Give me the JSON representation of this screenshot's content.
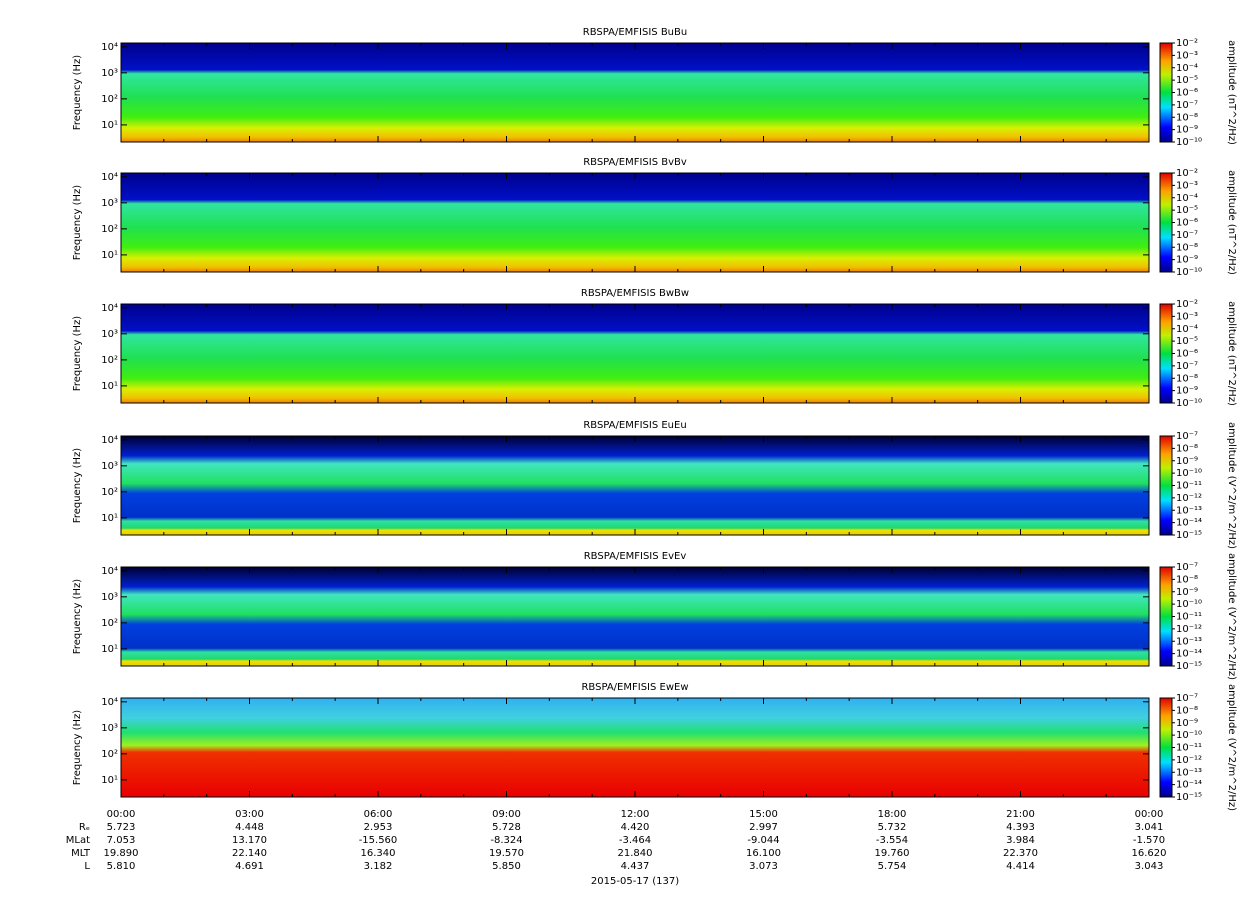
{
  "chart_data": [
    {
      "type": "spectrogram",
      "title": "RBSPA/EMFISIS  BuBu",
      "ylabel": "Frequency (Hz)",
      "ylog": true,
      "ylim": [
        2.2,
        14000
      ],
      "yticks": [
        {
          "value": 10,
          "label": "10¹"
        },
        {
          "value": 100,
          "label": "10²"
        },
        {
          "value": 1000,
          "label": "10³"
        },
        {
          "value": 10000,
          "label": "10⁴"
        }
      ],
      "zlabel": "amplitude (nT^2/Hz)",
      "zlog": true,
      "zlim": [
        1e-10,
        0.01
      ],
      "zticks": [
        {
          "value": 0.01,
          "label": "10⁻²"
        },
        {
          "value": 0.001,
          "label": "10⁻³"
        },
        {
          "value": 0.0001,
          "label": "10⁻⁴"
        },
        {
          "value": 1e-05,
          "label": "10⁻⁵"
        },
        {
          "value": 1e-06,
          "label": "10⁻⁶"
        },
        {
          "value": 1e-07,
          "label": "10⁻⁷"
        },
        {
          "value": 1e-08,
          "label": "10⁻⁸"
        },
        {
          "value": 1e-09,
          "label": "10⁻⁹"
        },
        {
          "value": 1e-10,
          "label": "10⁻¹⁰"
        }
      ]
    },
    {
      "type": "spectrogram",
      "title": "RBSPA/EMFISIS  BvBv",
      "ylabel": "Frequency (Hz)",
      "ylog": true,
      "ylim": [
        2.2,
        14000
      ],
      "yticks": [
        {
          "value": 10,
          "label": "10¹"
        },
        {
          "value": 100,
          "label": "10²"
        },
        {
          "value": 1000,
          "label": "10³"
        },
        {
          "value": 10000,
          "label": "10⁴"
        }
      ],
      "zlabel": "amplitude (nT^2/Hz)",
      "zlog": true,
      "zlim": [
        1e-10,
        0.01
      ],
      "zticks": [
        {
          "value": 0.01,
          "label": "10⁻²"
        },
        {
          "value": 0.001,
          "label": "10⁻³"
        },
        {
          "value": 0.0001,
          "label": "10⁻⁴"
        },
        {
          "value": 1e-05,
          "label": "10⁻⁵"
        },
        {
          "value": 1e-06,
          "label": "10⁻⁶"
        },
        {
          "value": 1e-07,
          "label": "10⁻⁷"
        },
        {
          "value": 1e-08,
          "label": "10⁻⁸"
        },
        {
          "value": 1e-09,
          "label": "10⁻⁹"
        },
        {
          "value": 1e-10,
          "label": "10⁻¹⁰"
        }
      ]
    },
    {
      "type": "spectrogram",
      "title": "RBSPA/EMFISIS  BwBw",
      "ylabel": "Frequency (Hz)",
      "ylog": true,
      "ylim": [
        2.2,
        14000
      ],
      "yticks": [
        {
          "value": 10,
          "label": "10¹"
        },
        {
          "value": 100,
          "label": "10²"
        },
        {
          "value": 1000,
          "label": "10³"
        },
        {
          "value": 10000,
          "label": "10⁴"
        }
      ],
      "zlabel": "amplitude (nT^2/Hz)",
      "zlog": true,
      "zlim": [
        1e-10,
        0.01
      ],
      "zticks": [
        {
          "value": 0.01,
          "label": "10⁻²"
        },
        {
          "value": 0.001,
          "label": "10⁻³"
        },
        {
          "value": 0.0001,
          "label": "10⁻⁴"
        },
        {
          "value": 1e-05,
          "label": "10⁻⁵"
        },
        {
          "value": 1e-06,
          "label": "10⁻⁶"
        },
        {
          "value": 1e-07,
          "label": "10⁻⁷"
        },
        {
          "value": 1e-08,
          "label": "10⁻⁸"
        },
        {
          "value": 1e-09,
          "label": "10⁻⁹"
        },
        {
          "value": 1e-10,
          "label": "10⁻¹⁰"
        }
      ]
    },
    {
      "type": "spectrogram",
      "title": "RBSPA/EMFISIS  EuEu",
      "ylabel": "Frequency (Hz)",
      "ylog": true,
      "ylim": [
        2.2,
        14000
      ],
      "yticks": [
        {
          "value": 10,
          "label": "10¹"
        },
        {
          "value": 100,
          "label": "10²"
        },
        {
          "value": 1000,
          "label": "10³"
        },
        {
          "value": 10000,
          "label": "10⁴"
        }
      ],
      "zlabel": "amplitude (V^2/m^2/Hz)",
      "zlog": true,
      "zlim": [
        1e-15,
        1e-07
      ],
      "zticks": [
        {
          "value": 1e-07,
          "label": "10⁻⁷"
        },
        {
          "value": 1e-08,
          "label": "10⁻⁸"
        },
        {
          "value": 1e-09,
          "label": "10⁻⁹"
        },
        {
          "value": 1e-10,
          "label": "10⁻¹⁰"
        },
        {
          "value": 1e-11,
          "label": "10⁻¹¹"
        },
        {
          "value": 1e-12,
          "label": "10⁻¹²"
        },
        {
          "value": 1e-13,
          "label": "10⁻¹³"
        },
        {
          "value": 1e-14,
          "label": "10⁻¹⁴"
        },
        {
          "value": 1e-15,
          "label": "10⁻¹⁵"
        }
      ]
    },
    {
      "type": "spectrogram",
      "title": "RBSPA/EMFISIS  EvEv",
      "ylabel": "Frequency (Hz)",
      "ylog": true,
      "ylim": [
        2.2,
        14000
      ],
      "yticks": [
        {
          "value": 10,
          "label": "10¹"
        },
        {
          "value": 100,
          "label": "10²"
        },
        {
          "value": 1000,
          "label": "10³"
        },
        {
          "value": 10000,
          "label": "10⁴"
        }
      ],
      "zlabel": "amplitude (V^2/m^2/Hz)",
      "zlog": true,
      "zlim": [
        1e-15,
        1e-07
      ],
      "zticks": [
        {
          "value": 1e-07,
          "label": "10⁻⁷"
        },
        {
          "value": 1e-08,
          "label": "10⁻⁸"
        },
        {
          "value": 1e-09,
          "label": "10⁻⁹"
        },
        {
          "value": 1e-10,
          "label": "10⁻¹⁰"
        },
        {
          "value": 1e-11,
          "label": "10⁻¹¹"
        },
        {
          "value": 1e-12,
          "label": "10⁻¹²"
        },
        {
          "value": 1e-13,
          "label": "10⁻¹³"
        },
        {
          "value": 1e-14,
          "label": "10⁻¹⁴"
        },
        {
          "value": 1e-15,
          "label": "10⁻¹⁵"
        }
      ]
    },
    {
      "type": "spectrogram",
      "title": "RBSPA/EMFISIS  EwEw",
      "ylabel": "Frequency (Hz)",
      "ylog": true,
      "ylim": [
        2.2,
        14000
      ],
      "yticks": [
        {
          "value": 10,
          "label": "10¹"
        },
        {
          "value": 100,
          "label": "10²"
        },
        {
          "value": 1000,
          "label": "10³"
        },
        {
          "value": 10000,
          "label": "10⁴"
        }
      ],
      "zlabel": "amplitude (V^2/m^2/Hz)",
      "zlog": true,
      "zlim": [
        1e-15,
        1e-07
      ],
      "zticks": [
        {
          "value": 1e-07,
          "label": "10⁻⁷"
        },
        {
          "value": 1e-08,
          "label": "10⁻⁸"
        },
        {
          "value": 1e-09,
          "label": "10⁻⁹"
        },
        {
          "value": 1e-10,
          "label": "10⁻¹⁰"
        },
        {
          "value": 1e-11,
          "label": "10⁻¹¹"
        },
        {
          "value": 1e-12,
          "label": "10⁻¹²"
        },
        {
          "value": 1e-13,
          "label": "10⁻¹³"
        },
        {
          "value": 1e-14,
          "label": "10⁻¹⁴"
        },
        {
          "value": 1e-15,
          "label": "10⁻¹⁵"
        }
      ]
    }
  ],
  "time_axis": {
    "ticks": [
      "00:00",
      "03:00",
      "06:00",
      "09:00",
      "12:00",
      "15:00",
      "18:00",
      "21:00",
      "00:00"
    ],
    "date_label": "2015-05-17 (137)",
    "ephemeris": [
      {
        "label": "Rₑ",
        "values": [
          "5.723",
          "4.448",
          "2.953",
          "5.728",
          "4.420",
          "2.997",
          "5.732",
          "4.393",
          "3.041"
        ]
      },
      {
        "label": "MLat",
        "values": [
          "7.053",
          "13.170",
          "-15.560",
          "-8.324",
          "-3.464",
          "-9.044",
          "-3.554",
          "3.984",
          "-1.570"
        ]
      },
      {
        "label": "MLT",
        "values": [
          "19.890",
          "22.140",
          "16.340",
          "19.570",
          "21.840",
          "16.100",
          "19.760",
          "22.370",
          "16.620"
        ]
      },
      {
        "label": "L",
        "values": [
          "5.810",
          "4.691",
          "3.182",
          "5.850",
          "4.437",
          "3.073",
          "5.754",
          "4.414",
          "3.043"
        ]
      }
    ]
  }
}
